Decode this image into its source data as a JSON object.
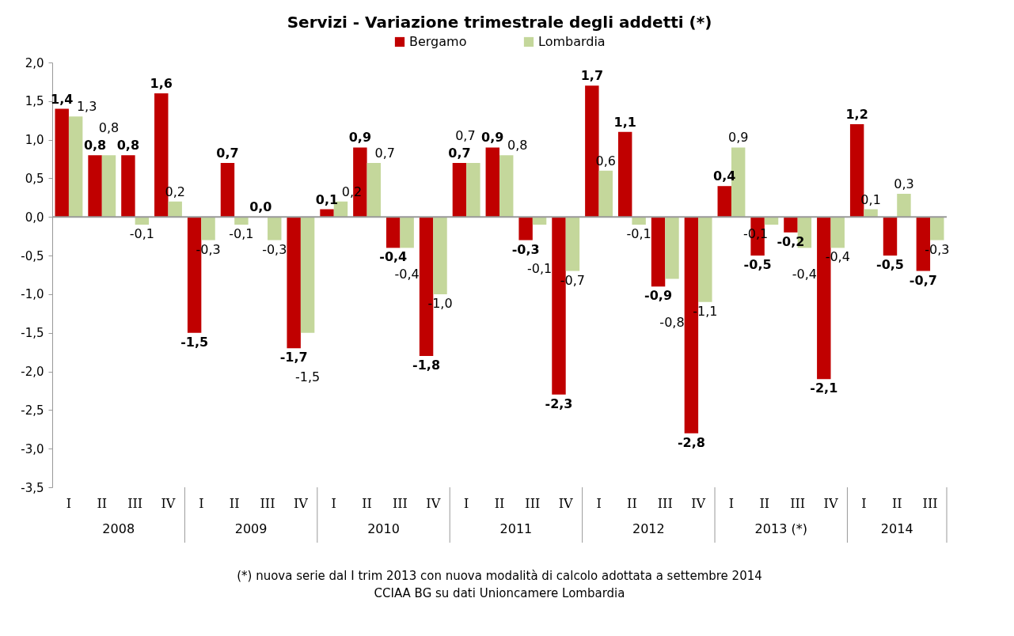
{
  "chart_data": {
    "type": "bar",
    "title": "Servizi - Variazione trimestrale degli addetti (*)",
    "categories": [
      "I",
      "II",
      "III",
      "IV",
      "I",
      "II",
      "III",
      "IV",
      "I",
      "II",
      "III",
      "IV",
      "I",
      "II",
      "III",
      "IV",
      "I",
      "II",
      "III",
      "IV",
      "I",
      "II",
      "III",
      "IV",
      "I",
      "II",
      "III"
    ],
    "series": [
      {
        "name": "Bergamo",
        "color": "#c00000",
        "values": [
          1.4,
          0.8,
          0.8,
          1.6,
          -1.5,
          0.7,
          0.0,
          -1.7,
          0.1,
          0.9,
          -0.4,
          -1.8,
          0.7,
          0.9,
          -0.3,
          -2.3,
          1.7,
          1.1,
          -0.9,
          -2.8,
          0.4,
          -0.5,
          -0.2,
          -2.1,
          1.2,
          -0.5,
          -0.7
        ],
        "value_labels": [
          "1,4",
          "0,8",
          "0,8",
          "1,6",
          "-1,5",
          "0,7",
          "0,0",
          "-1,7",
          "0,1",
          "0,9",
          "-0,4",
          "-1,8",
          "0,7",
          "0,9",
          "-0,3",
          "-2,3",
          "1,7",
          "1,1",
          "-0,9",
          "-2,8",
          "0,4",
          "-0,5",
          "-0,2",
          "-2,1",
          "1,2",
          "-0,5",
          "-0,7"
        ]
      },
      {
        "name": "Lombardia",
        "color": "#c4d79b",
        "values": [
          1.3,
          0.8,
          -0.1,
          0.2,
          -0.3,
          -0.1,
          -0.3,
          -1.5,
          0.2,
          0.7,
          -0.4,
          -1.0,
          0.7,
          0.8,
          -0.1,
          -0.7,
          0.6,
          -0.1,
          -0.8,
          -1.1,
          0.9,
          -0.1,
          -0.4,
          -0.4,
          0.1,
          0.3,
          -0.3
        ],
        "value_labels": [
          "1,3",
          "0,8",
          "-0,1",
          "0,2",
          "-0,3",
          "-0,1",
          "-0,3",
          "-1,5",
          "0,2",
          "0,7",
          "-0,4",
          "-1,0",
          "0,7",
          "0,8",
          "-0,1",
          "-0,7",
          "0,6",
          "-0,1",
          "-0,8",
          "-1,1",
          "0,9",
          "-0,1",
          "-0,4",
          "-0,4",
          "0,1",
          "0,3",
          "-0,3"
        ]
      }
    ],
    "ylim": [
      -3.5,
      2.0
    ],
    "yticks": [
      {
        "value": -3.5,
        "label": "-3,5"
      },
      {
        "value": -3.0,
        "label": "-3,0"
      },
      {
        "value": -2.5,
        "label": "-2,5"
      },
      {
        "value": -2.0,
        "label": "-2,0"
      },
      {
        "value": -1.5,
        "label": "-1,5"
      },
      {
        "value": -1.0,
        "label": "-1,0"
      },
      {
        "value": -0.5,
        "label": "-0,5"
      },
      {
        "value": 0,
        "label": "0,0"
      },
      {
        "value": 0.5,
        "label": "0,5"
      },
      {
        "value": 1.0,
        "label": "1,0"
      },
      {
        "value": 1.5,
        "label": "1,5"
      },
      {
        "value": 2.0,
        "label": "2,0"
      }
    ],
    "legend": "top",
    "annotations": [
      "2008",
      "2009",
      "2010",
      "2011",
      "2012",
      "2013 (*)",
      "2014",
      "(*) nuova serie dal I trim 2013  con nuova modalità di calcolo adottata a settembre 2014",
      "CCIAA BG su dati Unioncamere Lombardia"
    ]
  }
}
